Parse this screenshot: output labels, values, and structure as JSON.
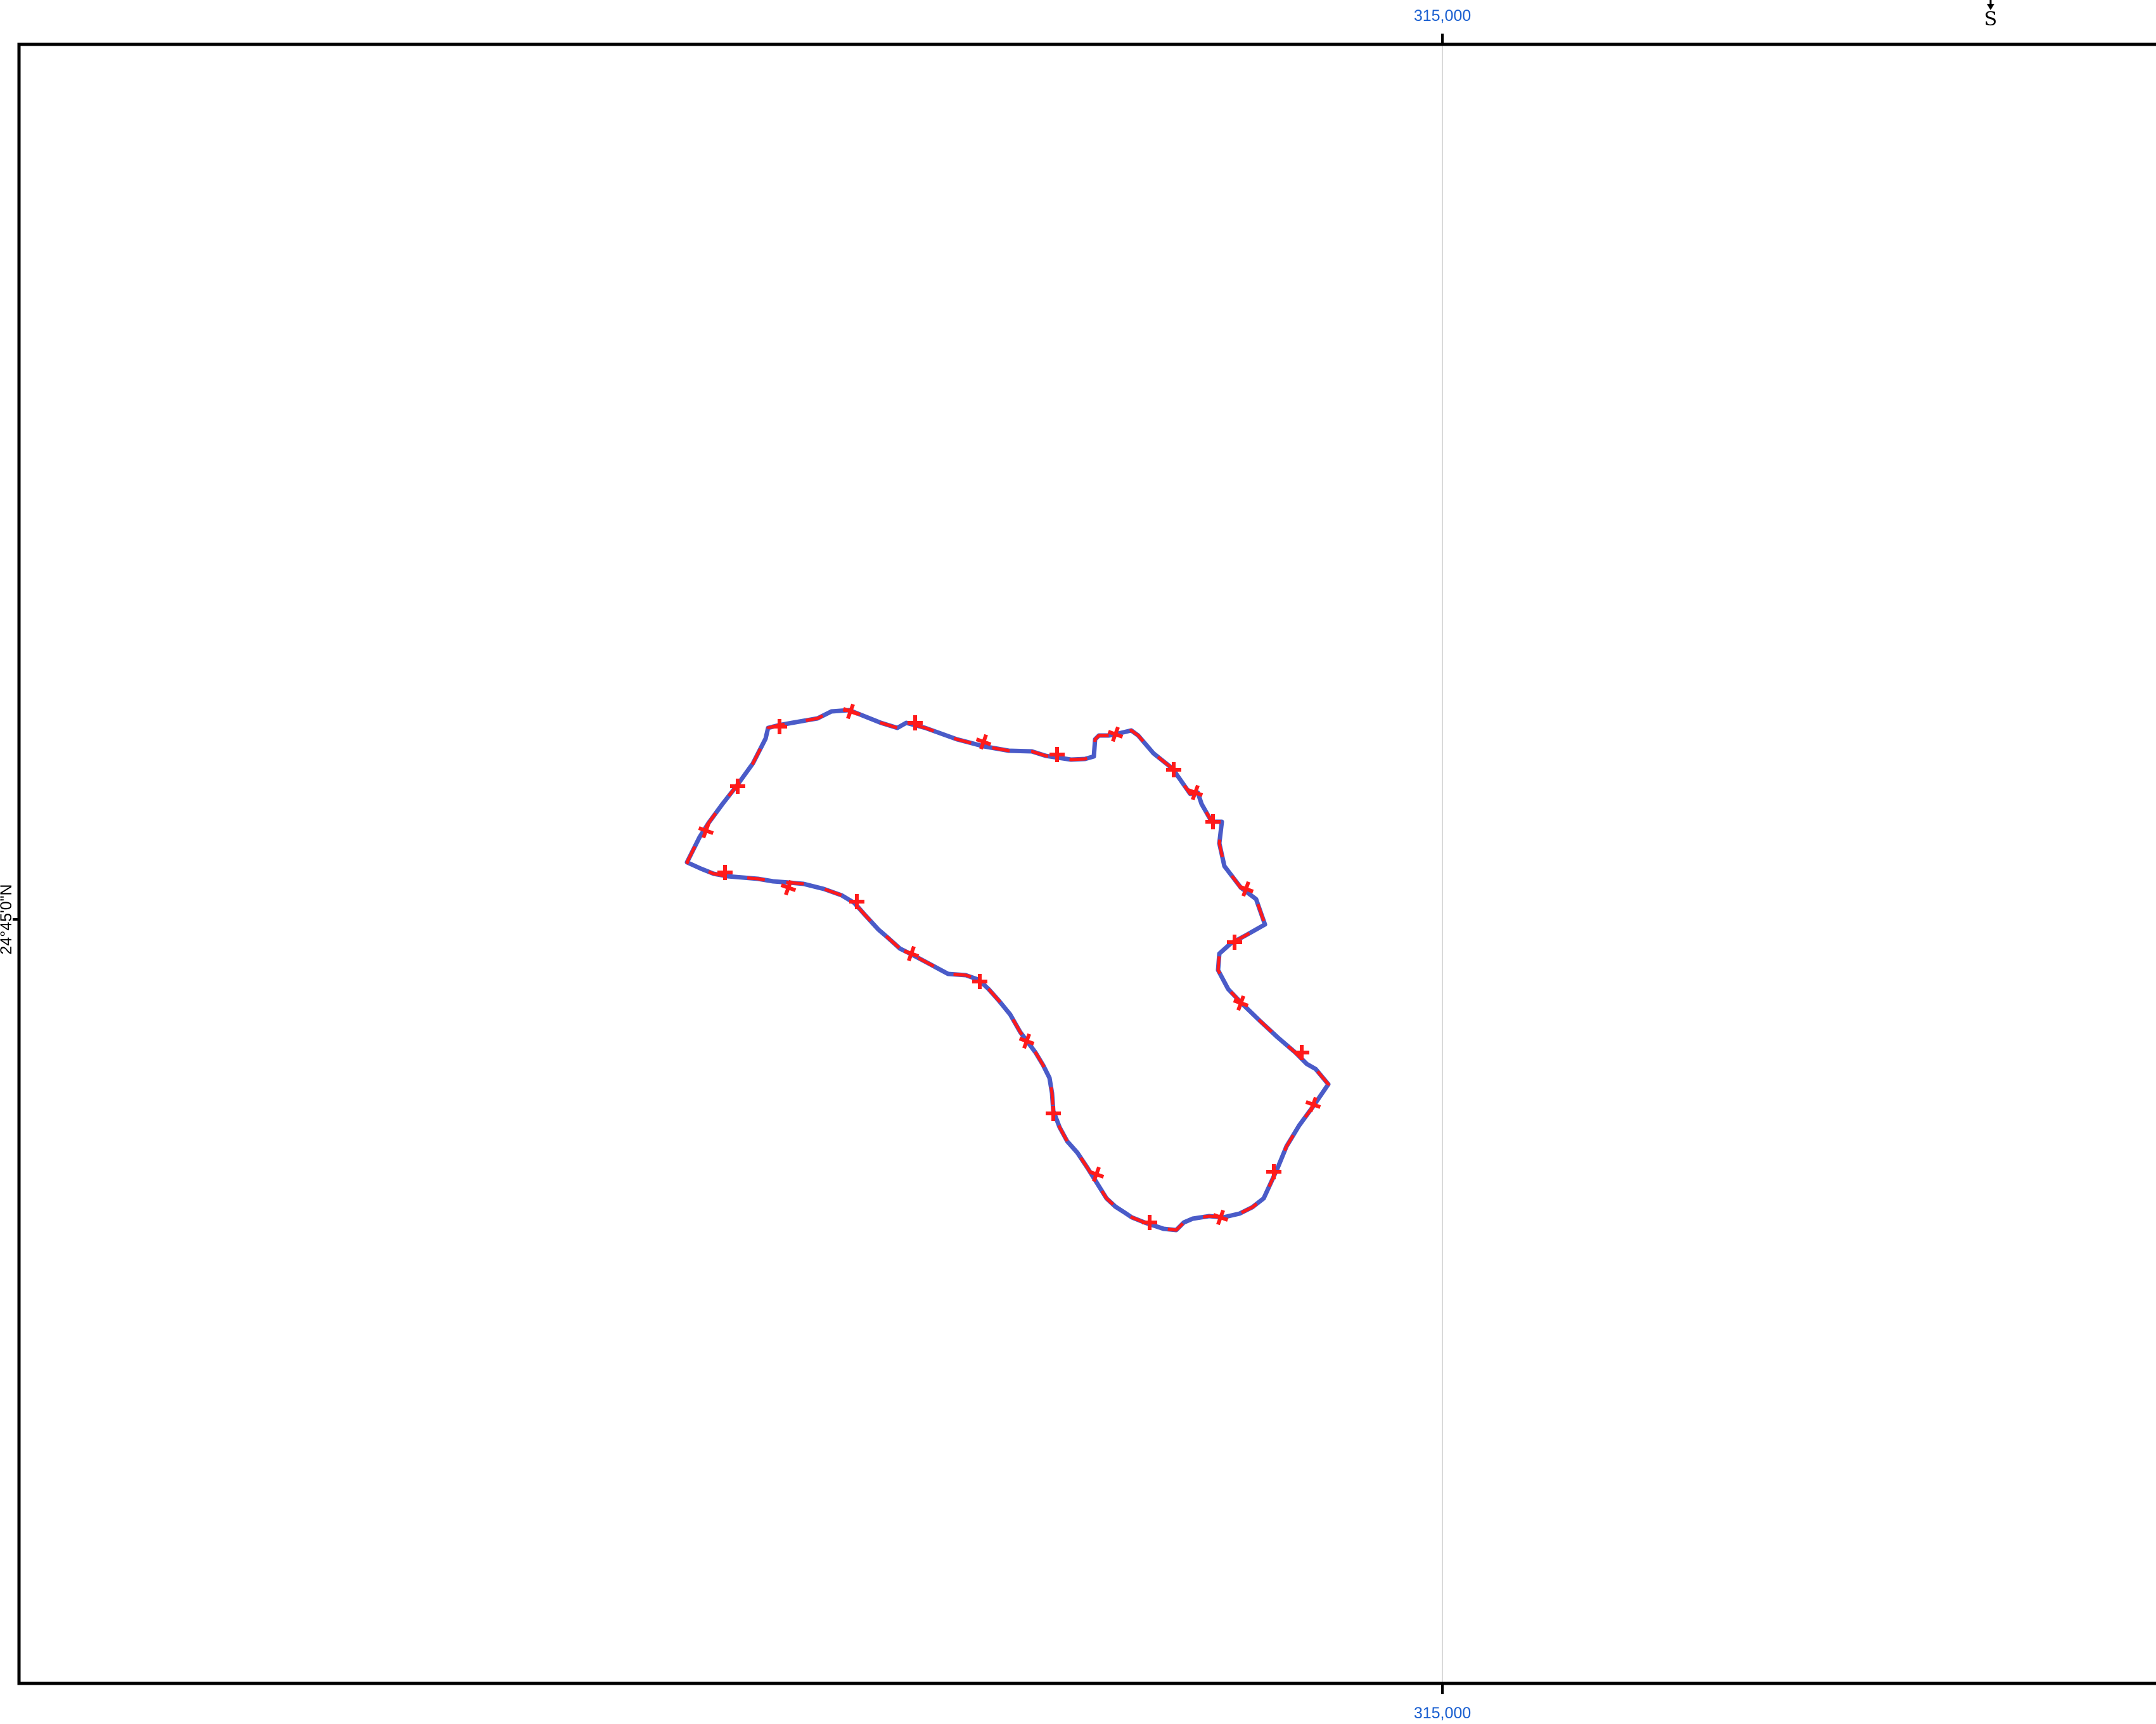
{
  "map": {
    "grid_easting_label": "315,000",
    "latitude_label": "24°45'0\"N",
    "north_arrow_letter": "S",
    "colors": {
      "frame": "#000000",
      "grid_line": "#d9d9d9",
      "grid_label": "#1a5fd0",
      "boundary_outline": "#4a5bc8",
      "boundary_dash": "#ff1a1a",
      "vertex_marker": "#ff1a1a"
    },
    "layers": [
      {
        "name": "boundary-polygon",
        "style": "blue outline with red dashed overlay"
      },
      {
        "name": "vertex-markers",
        "symbol": "red cross"
      }
    ]
  }
}
